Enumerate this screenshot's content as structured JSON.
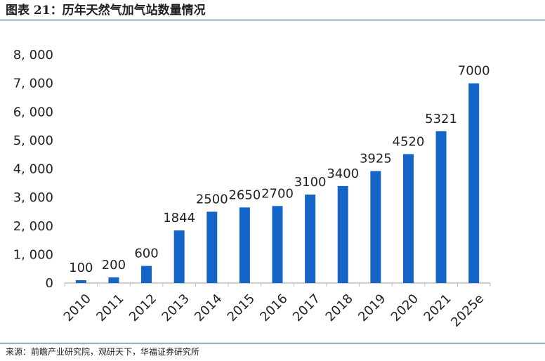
{
  "header": {
    "title": "图表 21：历年天然气加气站数量情况"
  },
  "footer": {
    "source": "来源：前瞻产业研究院，观研天下，华福证券研究所"
  },
  "colors": {
    "bar": "#1565c8",
    "rule": "#1f3a93",
    "axis": "#bfbfbf"
  },
  "chart_data": {
    "type": "bar",
    "title": "历年天然气加气站数量情况",
    "categories": [
      "2010",
      "2011",
      "2012",
      "2013",
      "2014",
      "2015",
      "2016",
      "2017",
      "2018",
      "2019",
      "2020",
      "2021",
      "2025e"
    ],
    "values": [
      100,
      200,
      600,
      1844,
      2500,
      2650,
      2700,
      3100,
      3400,
      3925,
      4520,
      5321,
      7000
    ],
    "data_labels": [
      "100",
      "200",
      "600",
      "1844",
      "2500",
      "2650",
      "2700",
      "3100",
      "3400",
      "3925",
      "4520",
      "5321",
      "7000"
    ],
    "y_ticks": [
      0,
      1000,
      2000,
      3000,
      4000,
      5000,
      6000,
      7000,
      8000
    ],
    "y_tick_labels": [
      "0",
      "1, 000",
      "2, 000",
      "3, 000",
      "4, 000",
      "5, 000",
      "6, 000",
      "7, 000",
      "8, 000"
    ],
    "ylim": [
      0,
      8000
    ],
    "xlabel": "",
    "ylabel": "",
    "grid": false,
    "legend": "none"
  }
}
